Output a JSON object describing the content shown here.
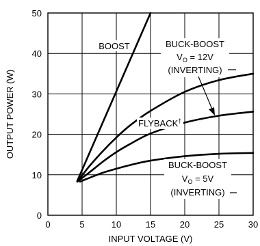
{
  "chart_data": {
    "type": "line",
    "xlabel": "INPUT VOLTAGE (V)",
    "ylabel": "OUTPUT POWER (W)",
    "xlim": [
      0,
      30
    ],
    "ylim": [
      0,
      50
    ],
    "xticks": [
      0,
      5,
      10,
      15,
      20,
      25,
      30
    ],
    "yticks": [
      0,
      10,
      20,
      30,
      40,
      50
    ],
    "grid": true,
    "series": [
      {
        "name": "BOOST",
        "x": [
          4.3,
          15
        ],
        "y": [
          8.5,
          50
        ]
      },
      {
        "name": "BUCK-BOOST V0 = 12V (INVERTING)",
        "x": [
          4.3,
          6,
          8,
          10,
          12,
          15,
          20,
          25,
          30
        ],
        "y": [
          8.3,
          12,
          15.8,
          19.2,
          22.2,
          25.8,
          30.5,
          33.4,
          35
        ]
      },
      {
        "name": "FLYBACK",
        "x": [
          4.3,
          6,
          8,
          10,
          12,
          15,
          20,
          25,
          30
        ],
        "y": [
          8.3,
          10.5,
          13.2,
          15.6,
          17.6,
          20.2,
          22.9,
          24.6,
          25.6
        ]
      },
      {
        "name": "BUCK-BOOST V0 = 5V (INVERTING)",
        "x": [
          4.7,
          6,
          8,
          10,
          12,
          15,
          20,
          25,
          30
        ],
        "y": [
          8.3,
          9.2,
          10.5,
          11.5,
          12.4,
          13.5,
          14.6,
          15.2,
          15.4
        ]
      }
    ],
    "annotations": {
      "boost": "BOOST",
      "flyback": "FLYBACK",
      "flyback_mark": "†",
      "bb12_title": "BUCK-BOOST",
      "bb12_v": "V",
      "bb12_sub": "O",
      "bb12_val": " = 12V",
      "bb12_inv": "(INVERTING)",
      "bb5_title": "BUCK-BOOST",
      "bb5_v": "V",
      "bb5_sub": "O",
      "bb5_val": " = 5V",
      "bb5_inv": "(INVERTING)"
    }
  }
}
